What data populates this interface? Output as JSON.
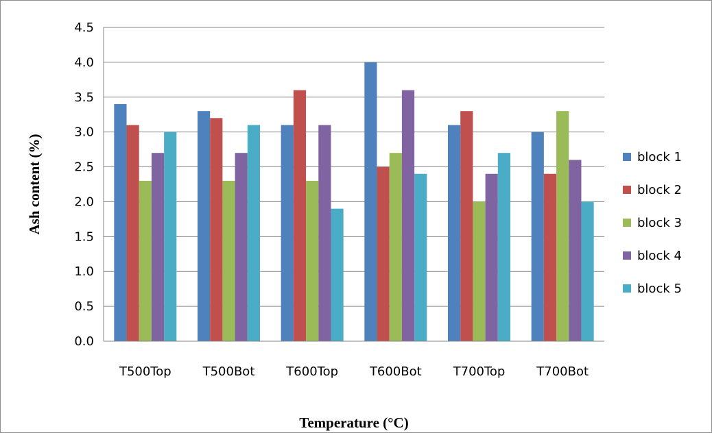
{
  "chart_data": {
    "type": "bar",
    "title": "",
    "xlabel": "Temperature (°C)",
    "ylabel": "Ash content (%)",
    "categories": [
      "T500Top",
      "T500Bot",
      "T600Top",
      "T600Bot",
      "T700Top",
      "T700Bot"
    ],
    "series": [
      {
        "name": "block 1",
        "color": "#4F81BD",
        "values": [
          3.4,
          3.3,
          3.1,
          4.0,
          3.1,
          3.0
        ]
      },
      {
        "name": "block 2",
        "color": "#C0504D",
        "values": [
          3.1,
          3.2,
          3.6,
          2.5,
          3.3,
          2.4
        ]
      },
      {
        "name": "block 3",
        "color": "#9BBB59",
        "values": [
          2.3,
          2.3,
          2.3,
          2.7,
          2.0,
          3.3
        ]
      },
      {
        "name": "block 4",
        "color": "#8064A2",
        "values": [
          2.7,
          2.7,
          3.1,
          3.6,
          2.4,
          2.6
        ]
      },
      {
        "name": "block 5",
        "color": "#4BACC6",
        "values": [
          3.0,
          3.1,
          1.9,
          2.4,
          2.7,
          2.0
        ]
      }
    ],
    "ylim": [
      0,
      4.5
    ],
    "yticks": [
      "0.0",
      "0.5",
      "1.0",
      "1.5",
      "2.0",
      "2.5",
      "3.0",
      "3.5",
      "4.0",
      "4.5"
    ],
    "grid": true,
    "legend": "right"
  }
}
